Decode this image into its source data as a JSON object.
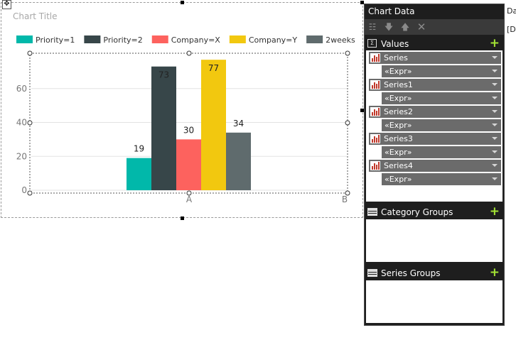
{
  "chart": {
    "title": "Chart Title"
  },
  "chart_data": {
    "type": "bar",
    "title": "Chart Title",
    "categories": [
      "A",
      "B"
    ],
    "series": [
      {
        "name": "Priority=1",
        "color": "#01b8aa",
        "values": [
          19,
          null
        ]
      },
      {
        "name": "Priority=2",
        "color": "#374649",
        "values": [
          73,
          null
        ]
      },
      {
        "name": "Company=X",
        "color": "#fd625e",
        "values": [
          30,
          null
        ]
      },
      {
        "name": "Company=Y",
        "color": "#f2c80f",
        "values": [
          77,
          null
        ]
      },
      {
        "name": "2weeks",
        "color": "#5f6b6d",
        "values": [
          34,
          null
        ]
      }
    ],
    "y_ticks": [
      0,
      20,
      40,
      60
    ],
    "ylim": [
      0,
      80
    ],
    "legend": "top",
    "grid": true
  },
  "pane": {
    "title": "Chart Data",
    "toolbar": {
      "properties": "properties-icon",
      "move_down": "arrow-down-icon",
      "move_up": "arrow-up-icon",
      "delete": "delete-icon"
    },
    "values": {
      "label": "Values",
      "icon": "sigma-icon",
      "items": [
        {
          "series": "Series",
          "expr": "«Expr»"
        },
        {
          "series": "Series1",
          "expr": "«Expr»"
        },
        {
          "series": "Series2",
          "expr": "«Expr»"
        },
        {
          "series": "Series3",
          "expr": "«Expr»"
        },
        {
          "series": "Series4",
          "expr": "«Expr»"
        }
      ]
    },
    "category_groups": {
      "label": "Category Groups"
    },
    "series_groups": {
      "label": "Series Groups"
    }
  },
  "props": {
    "label": "Da",
    "value": "[D"
  },
  "colors": {
    "pane_bg": "#1e1e1e",
    "row_bg": "#6b6b6b",
    "add_green": "#a4e534"
  }
}
